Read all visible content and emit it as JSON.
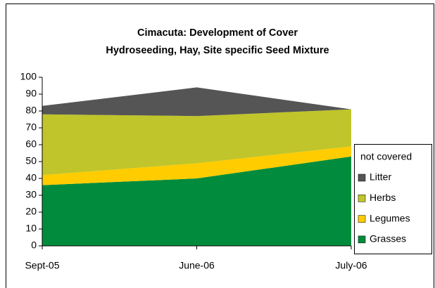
{
  "chart_data": {
    "type": "stacked_area",
    "title": [
      "Cimacuta: Development of Cover",
      "Hydroseeding, Hay, Site specific Seed Mixture"
    ],
    "categories": [
      "Sept-05",
      "June-06",
      "July-06"
    ],
    "series": [
      {
        "name": "Grasses",
        "color": "#008c3c",
        "values": [
          36,
          40,
          53
        ]
      },
      {
        "name": "Legumes",
        "color": "#ffcc00",
        "values": [
          6,
          9,
          6
        ]
      },
      {
        "name": "Herbs",
        "color": "#bfc52a",
        "values": [
          36,
          28,
          22
        ]
      },
      {
        "name": "Litter",
        "color": "#555555",
        "values": [
          5,
          17,
          0
        ]
      }
    ],
    "legend_title": "not covered",
    "legend": "right",
    "ylim": [
      0,
      100
    ],
    "yticks": [
      0,
      10,
      20,
      30,
      40,
      50,
      60,
      70,
      80,
      90,
      100
    ]
  }
}
